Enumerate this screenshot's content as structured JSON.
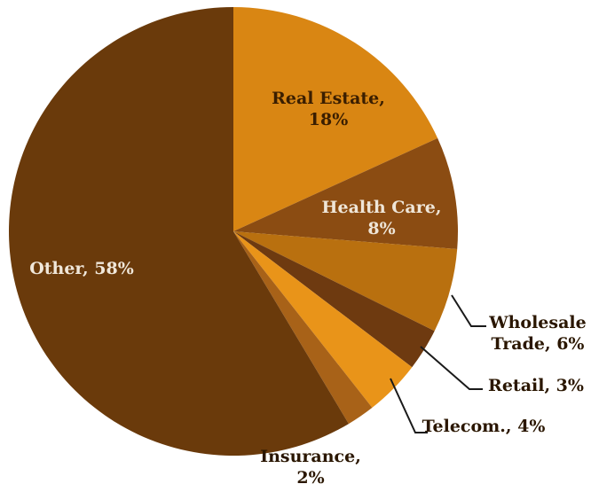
{
  "chart_data": {
    "type": "pie",
    "title": "",
    "legend": "none",
    "slices": [
      {
        "label_lines": [
          "Real Estate,",
          "18%"
        ],
        "category": "Real Estate",
        "value": 18,
        "color": "#D98613",
        "label_color": "#3a1e00"
      },
      {
        "label_lines": [
          "Health Care,",
          "8%"
        ],
        "category": "Health Care",
        "value": 8,
        "color": "#8B4C12",
        "label_color": "#efe6d8"
      },
      {
        "label_lines": [
          "Wholesale",
          "Trade, 6%"
        ],
        "category": "Wholesale Trade",
        "value": 6,
        "color": "#B9700F",
        "label_color": "#2a1600"
      },
      {
        "label_lines": [
          "Retail, 3%"
        ],
        "category": "Retail",
        "value": 3,
        "color": "#6E3A10",
        "label_color": "#2a1600"
      },
      {
        "label_lines": [
          "Telecom., 4%"
        ],
        "category": "Telecom.",
        "value": 4,
        "color": "#E99419",
        "label_color": "#2a1600"
      },
      {
        "label_lines": [
          "Insurance,",
          "2%"
        ],
        "category": "Insurance",
        "value": 2,
        "color": "#A86218",
        "label_color": "#2a1600"
      },
      {
        "label_lines": [
          "Other, 58%"
        ],
        "category": "Other",
        "value": 58,
        "color": "#6A3A0B",
        "label_color": "#f0e7da"
      }
    ]
  }
}
